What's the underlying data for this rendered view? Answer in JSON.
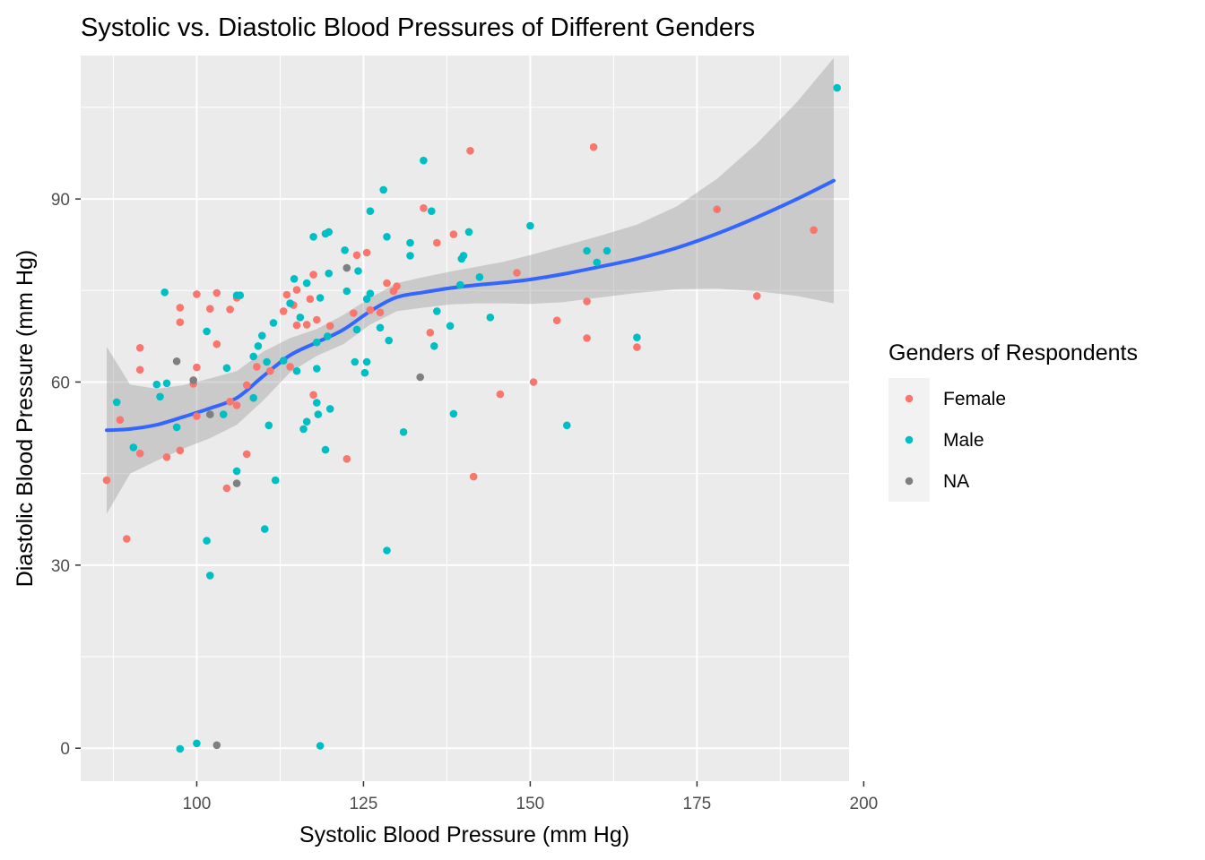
{
  "chart_data": {
    "type": "scatter",
    "title": "Systolic vs. Diastolic Blood Pressures of Different Genders",
    "xlabel": "Systolic Blood Pressure (mm Hg)",
    "ylabel": "Diastolic Blood Pressure (mm Hg)",
    "xlim": [
      82.6,
      197.8
    ],
    "ylim": [
      -5.4,
      113.5
    ],
    "xticks": [
      100,
      125,
      150,
      175,
      200
    ],
    "xtick_labels": [
      "100",
      "125",
      "150",
      "175",
      "200"
    ],
    "yticks": [
      0,
      30,
      60,
      90
    ],
    "ytick_labels": [
      "0",
      "30",
      "60",
      "90"
    ],
    "grid": true,
    "legend": {
      "title": "Genders of Respondents",
      "placement": "right"
    },
    "series": [
      {
        "name": "Female",
        "color": "#F8766D",
        "points": [
          [
            86.5,
            43.9
          ],
          [
            88.5,
            53.8
          ],
          [
            89.5,
            34.3
          ],
          [
            91.5,
            48.3
          ],
          [
            91.5,
            62.0
          ],
          [
            91.5,
            65.6
          ],
          [
            95.5,
            47.7
          ],
          [
            97.5,
            48.8
          ],
          [
            97.5,
            69.8
          ],
          [
            97.5,
            72.2
          ],
          [
            99.5,
            59.7
          ],
          [
            100,
            54.4
          ],
          [
            100,
            62.4
          ],
          [
            100,
            74.4
          ],
          [
            102,
            72.0
          ],
          [
            103,
            66.2
          ],
          [
            103,
            74.6
          ],
          [
            104.5,
            42.6
          ],
          [
            105,
            56.8
          ],
          [
            105,
            71.9
          ],
          [
            106,
            56.2
          ],
          [
            106,
            73.8
          ],
          [
            107.5,
            48.2
          ],
          [
            107.5,
            59.5
          ],
          [
            109,
            62.5
          ],
          [
            111,
            61.8
          ],
          [
            113,
            71.6
          ],
          [
            113.5,
            74.3
          ],
          [
            114,
            62.5
          ],
          [
            114.5,
            72.6
          ],
          [
            115,
            69.3
          ],
          [
            115,
            75.1
          ],
          [
            116.5,
            69.4
          ],
          [
            117,
            73.6
          ],
          [
            117.5,
            57.9
          ],
          [
            117.5,
            77.6
          ],
          [
            118,
            70.2
          ],
          [
            120,
            69.2
          ],
          [
            122.5,
            47.4
          ],
          [
            123.5,
            71.3
          ],
          [
            124,
            80.8
          ],
          [
            125.5,
            81.2
          ],
          [
            126,
            71.8
          ],
          [
            127.5,
            71.4
          ],
          [
            128.5,
            76.2
          ],
          [
            129.5,
            74.9
          ],
          [
            130,
            75.7
          ],
          [
            134,
            88.5
          ],
          [
            135,
            68.1
          ],
          [
            136,
            82.8
          ],
          [
            138.5,
            84.2
          ],
          [
            141,
            97.9
          ],
          [
            141.5,
            44.5
          ],
          [
            145.5,
            58.0
          ],
          [
            148,
            77.9
          ],
          [
            150.5,
            60.0
          ],
          [
            154,
            70.1
          ],
          [
            158.5,
            67.2
          ],
          [
            158.5,
            73.2
          ],
          [
            159.5,
            98.5
          ],
          [
            166,
            65.7
          ],
          [
            178,
            88.3
          ],
          [
            184,
            74.1
          ],
          [
            192.5,
            84.9
          ]
        ]
      },
      {
        "name": "Male",
        "color": "#00BFC4",
        "points": [
          [
            88,
            56.7
          ],
          [
            90.5,
            49.3
          ],
          [
            94,
            59.6
          ],
          [
            94.5,
            57.6
          ],
          [
            95.2,
            74.7
          ],
          [
            95.5,
            59.8
          ],
          [
            97,
            52.6
          ],
          [
            97.5,
            -0.1
          ],
          [
            100,
            0.8
          ],
          [
            101.5,
            68.3
          ],
          [
            101.5,
            34.0
          ],
          [
            102,
            28.3
          ],
          [
            104,
            54.7
          ],
          [
            104.5,
            62.3
          ],
          [
            106,
            45.4
          ],
          [
            106,
            74.2
          ],
          [
            106.5,
            74.2
          ],
          [
            108.5,
            57.4
          ],
          [
            108.5,
            64.2
          ],
          [
            109.2,
            65.9
          ],
          [
            109.8,
            67.6
          ],
          [
            110.5,
            63.3
          ],
          [
            110.2,
            35.9
          ],
          [
            110.8,
            52.9
          ],
          [
            111.5,
            69.7
          ],
          [
            111.8,
            43.9
          ],
          [
            113,
            63.5
          ],
          [
            114,
            72.9
          ],
          [
            114.6,
            76.9
          ],
          [
            115,
            61.8
          ],
          [
            115.5,
            70.6
          ],
          [
            116,
            52.3
          ],
          [
            116.5,
            53.5
          ],
          [
            116.5,
            76.2
          ],
          [
            117.5,
            83.8
          ],
          [
            118,
            66.5
          ],
          [
            118,
            62.2
          ],
          [
            118,
            56.6
          ],
          [
            118.2,
            54.7
          ],
          [
            118.5,
            73.8
          ],
          [
            118.5,
            0.4
          ],
          [
            119.3,
            48.9
          ],
          [
            119.3,
            84.3
          ],
          [
            119.8,
            84.6
          ],
          [
            119.8,
            77.8
          ],
          [
            119.6,
            67.5
          ],
          [
            120,
            55.6
          ],
          [
            122.2,
            81.6
          ],
          [
            122.5,
            74.9
          ],
          [
            123.7,
            63.3
          ],
          [
            124.2,
            78.2
          ],
          [
            124,
            68.6
          ],
          [
            125.2,
            61.5
          ],
          [
            125.5,
            63.3
          ],
          [
            125.5,
            73.6
          ],
          [
            126,
            74.5
          ],
          [
            126,
            88.0
          ],
          [
            127.5,
            68.9
          ],
          [
            128,
            91.5
          ],
          [
            128.5,
            83.8
          ],
          [
            128.5,
            32.4
          ],
          [
            128.8,
            66.8
          ],
          [
            131,
            51.8
          ],
          [
            132,
            82.8
          ],
          [
            132,
            80.7
          ],
          [
            134,
            96.3
          ],
          [
            135.2,
            88.0
          ],
          [
            135.6,
            65.9
          ],
          [
            136,
            71.6
          ],
          [
            138,
            69.2
          ],
          [
            138.5,
            54.8
          ],
          [
            139.5,
            75.9
          ],
          [
            139.7,
            80.2
          ],
          [
            140,
            80.7
          ],
          [
            140.8,
            84.6
          ],
          [
            142.4,
            77.2
          ],
          [
            144,
            70.6
          ],
          [
            150,
            85.6
          ],
          [
            155.5,
            52.9
          ],
          [
            158.5,
            81.5
          ],
          [
            160,
            79.6
          ],
          [
            161.5,
            81.5
          ],
          [
            166,
            67.3
          ],
          [
            196,
            108.2
          ]
        ]
      },
      {
        "name": "NA",
        "color": "#7F7F7F",
        "points": [
          [
            97,
            63.4
          ],
          [
            99.5,
            60.3
          ],
          [
            102,
            54.7
          ],
          [
            103,
            0.5
          ],
          [
            106,
            43.4
          ],
          [
            122.5,
            78.7
          ],
          [
            133.5,
            60.8
          ]
        ]
      }
    ],
    "smooth": {
      "color": "#3366FF",
      "band_color": "#999999",
      "x": [
        86.5,
        90,
        94,
        98,
        102,
        106,
        110,
        114,
        118,
        122,
        126,
        130,
        134,
        138,
        142,
        146,
        150,
        155,
        160,
        166,
        172,
        178,
        184,
        190,
        195.5
      ],
      "y": [
        52.1,
        52.3,
        53.0,
        54.3,
        55.7,
        57.4,
        61.0,
        64.4,
        66.5,
        68.6,
        71.6,
        73.9,
        74.7,
        75.4,
        75.9,
        76.3,
        76.8,
        77.7,
        78.8,
        80.2,
        82.0,
        84.3,
        87.0,
        90.0,
        93.0
      ],
      "ymin": [
        38.4,
        45.0,
        47.1,
        49.1,
        50.8,
        53.0,
        57.0,
        61.6,
        64.3,
        66.2,
        69.4,
        71.6,
        72.2,
        72.7,
        72.9,
        72.9,
        72.8,
        73.1,
        73.8,
        74.6,
        75.2,
        75.3,
        74.9,
        74.1,
        72.9
      ],
      "ymax": [
        65.8,
        59.6,
        58.9,
        59.5,
        60.6,
        61.8,
        65.0,
        67.2,
        68.7,
        71.0,
        73.8,
        76.2,
        77.2,
        78.1,
        78.9,
        79.7,
        80.8,
        82.3,
        83.8,
        85.8,
        88.8,
        93.3,
        99.1,
        105.9,
        113.1
      ]
    }
  }
}
